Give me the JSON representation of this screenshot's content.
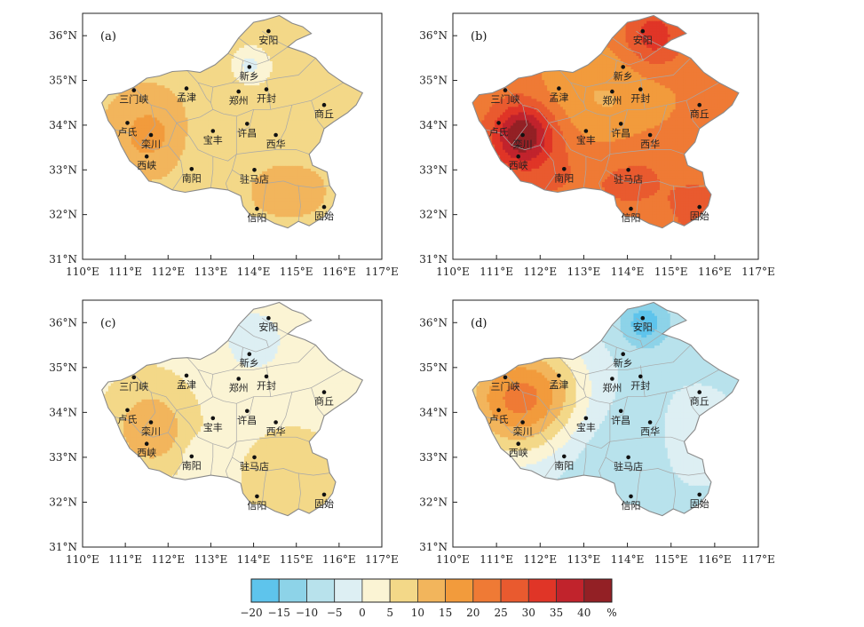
{
  "figure": {
    "lon_ticks": [
      "110°E",
      "111°E",
      "112°E",
      "113°E",
      "114°E",
      "115°E",
      "116°E",
      "117°E"
    ],
    "lat_ticks": [
      "31°N",
      "32°N",
      "33°N",
      "34°N",
      "35°N",
      "36°N"
    ],
    "lon_values": [
      110,
      111,
      112,
      113,
      114,
      115,
      116,
      117
    ],
    "lat_values": [
      31,
      32,
      33,
      34,
      35,
      36
    ]
  },
  "cities": [
    {
      "name": "安阳",
      "lon": 114.35,
      "lat": 36.1
    },
    {
      "name": "新乡",
      "lon": 113.9,
      "lat": 35.3
    },
    {
      "name": "三门峡",
      "lon": 111.2,
      "lat": 34.78
    },
    {
      "name": "孟津",
      "lon": 112.43,
      "lat": 34.82
    },
    {
      "name": "郑州",
      "lon": 113.65,
      "lat": 34.75
    },
    {
      "name": "开封",
      "lon": 114.3,
      "lat": 34.8
    },
    {
      "name": "商丘",
      "lon": 115.65,
      "lat": 34.45
    },
    {
      "name": "卢氏",
      "lon": 111.05,
      "lat": 34.05
    },
    {
      "name": "栾川",
      "lon": 111.6,
      "lat": 33.78
    },
    {
      "name": "宝丰",
      "lon": 113.05,
      "lat": 33.87
    },
    {
      "name": "许昌",
      "lon": 113.85,
      "lat": 34.03
    },
    {
      "name": "西华",
      "lon": 114.52,
      "lat": 33.78
    },
    {
      "name": "西峡",
      "lon": 111.5,
      "lat": 33.3
    },
    {
      "name": "南阳",
      "lon": 112.55,
      "lat": 33.02
    },
    {
      "name": "驻马店",
      "lon": 114.02,
      "lat": 33.0
    },
    {
      "name": "信阳",
      "lon": 114.08,
      "lat": 32.13
    },
    {
      "name": "固始",
      "lon": 115.65,
      "lat": 32.17
    }
  ],
  "panels": [
    {
      "label": "(a)",
      "base": 7,
      "centers": [
        {
          "lon": 111.55,
          "lat": 33.75,
          "amp": 7,
          "r": 0.6
        },
        {
          "lon": 111.5,
          "lat": 34.1,
          "amp": 3,
          "r": 1.0
        },
        {
          "lon": 113.9,
          "lat": 35.35,
          "amp": -8,
          "r": 0.22
        },
        {
          "lon": 115.3,
          "lat": 32.6,
          "amp": 3.5,
          "r": 0.7
        },
        {
          "lon": 114.2,
          "lat": 32.6,
          "amp": 3,
          "r": 0.7
        },
        {
          "lon": 115.3,
          "lat": 35.0,
          "amp": -2,
          "r": 1.3
        },
        {
          "lon": 113.0,
          "lat": 33.5,
          "amp": -2,
          "r": 0.6
        }
      ]
    },
    {
      "label": "(b)",
      "base": 21,
      "centers": [
        {
          "lon": 111.6,
          "lat": 33.8,
          "amp": 20,
          "r": 0.45
        },
        {
          "lon": 112.0,
          "lat": 33.4,
          "amp": 6,
          "r": 1.0
        },
        {
          "lon": 114.6,
          "lat": 36.0,
          "amp": 12,
          "r": 0.5
        },
        {
          "lon": 113.5,
          "lat": 34.3,
          "amp": -8,
          "r": 0.9
        },
        {
          "lon": 114.1,
          "lat": 33.0,
          "amp": 6,
          "r": 0.8
        },
        {
          "lon": 115.7,
          "lat": 32.1,
          "amp": 6,
          "r": 0.5
        },
        {
          "lon": 112.5,
          "lat": 34.9,
          "amp": -2,
          "r": 0.5
        }
      ]
    },
    {
      "label": "(c)",
      "base": 3,
      "centers": [
        {
          "lon": 111.6,
          "lat": 33.6,
          "amp": 10,
          "r": 0.6
        },
        {
          "lon": 114.9,
          "lat": 32.5,
          "amp": 6,
          "r": 0.8
        },
        {
          "lon": 114.0,
          "lat": 35.6,
          "amp": -5,
          "r": 0.6
        },
        {
          "lon": 112.7,
          "lat": 33.05,
          "amp": -4,
          "r": 0.25
        },
        {
          "lon": 111.5,
          "lat": 34.3,
          "amp": 2,
          "r": 1.0
        }
      ]
    },
    {
      "label": "(d)",
      "base": -6,
      "centers": [
        {
          "lon": 111.3,
          "lat": 34.3,
          "amp": 22,
          "r": 0.9
        },
        {
          "lon": 112.2,
          "lat": 34.4,
          "amp": 10,
          "r": 0.8
        },
        {
          "lon": 114.4,
          "lat": 36.0,
          "amp": -12,
          "r": 0.4
        },
        {
          "lon": 113.3,
          "lat": 33.4,
          "amp": -3,
          "r": 0.9
        },
        {
          "lon": 115.5,
          "lat": 33.5,
          "amp": 2,
          "r": 1.0
        }
      ]
    }
  ],
  "colorbar": {
    "labels": [
      "−20",
      "−15",
      "−10",
      "−5",
      "0",
      "5",
      "10",
      "15",
      "20",
      "25",
      "30",
      "35",
      "40",
      "%"
    ],
    "bounds": [
      -20,
      -15,
      -10,
      -5,
      0,
      5,
      10,
      15,
      20,
      25,
      30,
      35,
      40
    ],
    "colors": [
      "#5ec4ec",
      "#8dd3e8",
      "#b8e2ec",
      "#ddeff3",
      "#fbf4d4",
      "#f3d888",
      "#f2b55c",
      "#f29b3c",
      "#ef7a35",
      "#e95a2f",
      "#e03527",
      "#c1232c",
      "#932025"
    ]
  }
}
